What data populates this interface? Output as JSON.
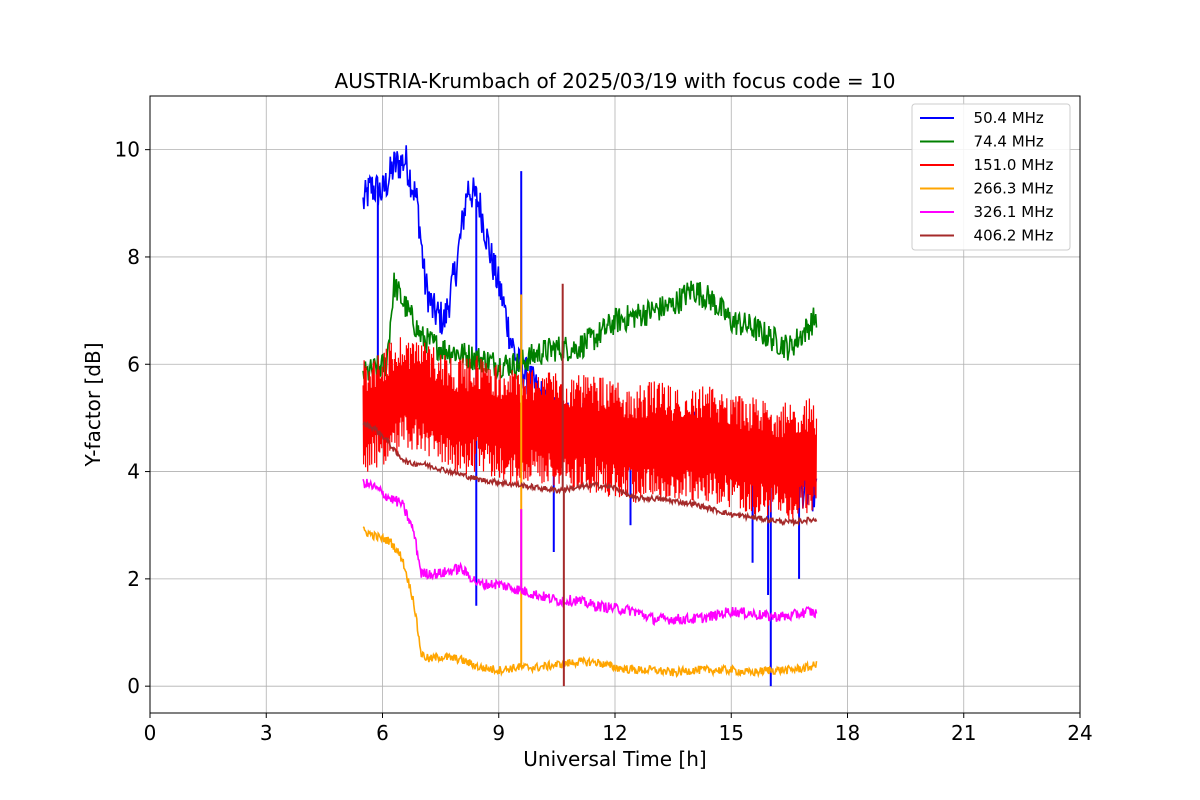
{
  "chart_data": {
    "type": "line",
    "title": "AUSTRIA-Krumbach of 2025/03/19 with focus code = 10",
    "xlabel": "Universal Time [h]",
    "ylabel": "Y-factor [dB]",
    "xlim": [
      0,
      24
    ],
    "ylim": [
      -0.5,
      11
    ],
    "xticks": [
      0,
      3,
      6,
      9,
      12,
      15,
      18,
      21,
      24
    ],
    "yticks": [
      0,
      2,
      4,
      6,
      8,
      10
    ],
    "grid": true,
    "legend_position": "top-right",
    "series": [
      {
        "name": " 50.4 MHz",
        "color": "#0000ff",
        "x": [
          5.5,
          5.7,
          6.0,
          6.3,
          6.6,
          6.9,
          7.1,
          7.3,
          7.6,
          7.9,
          8.2,
          8.5,
          8.8,
          9.1,
          9.3,
          9.5,
          9.7,
          10.0,
          10.3,
          10.7,
          11.0,
          11.5,
          12.0,
          12.5,
          13.0,
          13.5,
          14.0,
          14.5,
          15.0,
          15.5,
          16.0,
          16.5,
          17.0,
          17.2
        ],
        "y": [
          9.0,
          9.3,
          9.2,
          9.7,
          9.8,
          9.0,
          7.5,
          7.0,
          6.8,
          7.8,
          9.3,
          9.0,
          8.0,
          7.2,
          6.5,
          6.0,
          5.8,
          5.5,
          5.2,
          5.0,
          5.0,
          4.8,
          4.8,
          4.5,
          4.7,
          4.5,
          4.8,
          4.6,
          4.4,
          4.2,
          4.0,
          3.8,
          3.6,
          3.6
        ],
        "spikes": [
          {
            "x": 5.88,
            "y": 6.0
          },
          {
            "x": 8.42,
            "y": 1.5
          },
          {
            "x": 9.58,
            "y": 9.6
          },
          {
            "x": 10.42,
            "y": 2.5
          },
          {
            "x": 12.4,
            "y": 3.0
          },
          {
            "x": 15.55,
            "y": 2.3
          },
          {
            "x": 16.02,
            "y": 0.0
          },
          {
            "x": 16.75,
            "y": 2.0
          },
          {
            "x": 15.95,
            "y": 1.7
          }
        ]
      },
      {
        "name": " 74.4 MHz",
        "color": "#008000",
        "x": [
          5.5,
          5.8,
          6.1,
          6.3,
          6.5,
          6.8,
          7.0,
          7.5,
          8.0,
          8.5,
          9.0,
          9.5,
          10.0,
          10.5,
          11.0,
          11.5,
          12.0,
          12.5,
          13.0,
          13.5,
          14.0,
          14.5,
          15.0,
          15.5,
          16.0,
          16.5,
          17.0,
          17.2
        ],
        "y": [
          5.8,
          5.9,
          6.0,
          7.5,
          7.2,
          6.8,
          6.5,
          6.3,
          6.2,
          6.1,
          6.0,
          6.0,
          6.2,
          6.3,
          6.3,
          6.5,
          6.8,
          6.9,
          7.0,
          7.1,
          7.4,
          7.2,
          6.8,
          6.7,
          6.5,
          6.3,
          6.7,
          6.9
        ]
      },
      {
        "name": " 151.0 MHz",
        "color": "#ff0000",
        "x": [
          5.5,
          6.0,
          6.5,
          7.0,
          7.5,
          8.0,
          8.5,
          9.0,
          9.5,
          10.0,
          10.5,
          11.0,
          11.5,
          12.0,
          12.5,
          13.0,
          13.5,
          14.0,
          14.5,
          15.0,
          15.5,
          16.0,
          16.5,
          17.0,
          17.2
        ],
        "y": [
          5.0,
          5.2,
          5.5,
          5.4,
          5.2,
          5.0,
          5.1,
          4.9,
          4.8,
          4.9,
          4.8,
          4.7,
          4.7,
          4.6,
          4.5,
          4.6,
          4.5,
          4.5,
          4.5,
          4.4,
          4.3,
          4.2,
          4.2,
          4.3,
          4.1
        ],
        "amplitude": 1.1
      },
      {
        "name": " 266.3 MHz",
        "color": "#ffa500",
        "x": [
          5.5,
          5.8,
          6.2,
          6.5,
          6.8,
          7.0,
          7.2,
          7.5,
          8.0,
          8.5,
          9.0,
          9.5,
          10.0,
          10.5,
          11.0,
          11.5,
          12.0,
          12.5,
          13.0,
          13.5,
          14.0,
          14.5,
          15.0,
          15.5,
          16.0,
          16.5,
          17.0,
          17.2
        ],
        "y": [
          2.9,
          2.8,
          2.7,
          2.4,
          1.6,
          0.6,
          0.5,
          0.55,
          0.5,
          0.35,
          0.3,
          0.35,
          0.35,
          0.4,
          0.45,
          0.45,
          0.35,
          0.3,
          0.3,
          0.25,
          0.3,
          0.3,
          0.3,
          0.25,
          0.3,
          0.3,
          0.35,
          0.4
        ],
        "spikes": [
          {
            "x": 9.58,
            "y": 7.3
          }
        ]
      },
      {
        "name": " 326.1 MHz",
        "color": "#ff00ff",
        "x": [
          5.5,
          5.8,
          6.2,
          6.5,
          6.8,
          7.0,
          7.2,
          7.5,
          8.0,
          8.5,
          9.0,
          9.5,
          10.0,
          10.5,
          11.0,
          11.5,
          12.0,
          12.5,
          13.0,
          13.5,
          14.0,
          14.5,
          15.0,
          15.5,
          16.0,
          16.5,
          17.0,
          17.2
        ],
        "y": [
          3.8,
          3.7,
          3.5,
          3.4,
          2.9,
          2.1,
          2.1,
          2.1,
          2.2,
          1.9,
          1.9,
          1.8,
          1.7,
          1.6,
          1.6,
          1.5,
          1.45,
          1.4,
          1.25,
          1.25,
          1.25,
          1.3,
          1.4,
          1.35,
          1.3,
          1.3,
          1.4,
          1.35
        ],
        "spikes": [
          {
            "x": 9.58,
            "y": 3.3
          }
        ]
      },
      {
        "name": " 406.2 MHz",
        "color": "#a52a2a",
        "x": [
          5.5,
          5.8,
          6.1,
          6.4,
          6.7,
          7.0,
          7.5,
          8.0,
          8.5,
          9.0,
          9.5,
          10.0,
          10.5,
          11.0,
          11.5,
          12.0,
          12.5,
          13.0,
          13.5,
          14.0,
          14.5,
          15.0,
          15.5,
          16.0,
          16.5,
          17.0,
          17.2
        ],
        "y": [
          4.9,
          4.8,
          4.6,
          4.3,
          4.15,
          4.15,
          4.05,
          3.95,
          3.85,
          3.8,
          3.75,
          3.7,
          3.65,
          3.7,
          3.75,
          3.7,
          3.5,
          3.5,
          3.45,
          3.4,
          3.3,
          3.2,
          3.15,
          3.1,
          3.05,
          3.1,
          3.1
        ],
        "spikes": [
          {
            "x": 10.65,
            "y": 7.5
          },
          {
            "x": 10.68,
            "y": 0.0
          }
        ]
      }
    ]
  }
}
